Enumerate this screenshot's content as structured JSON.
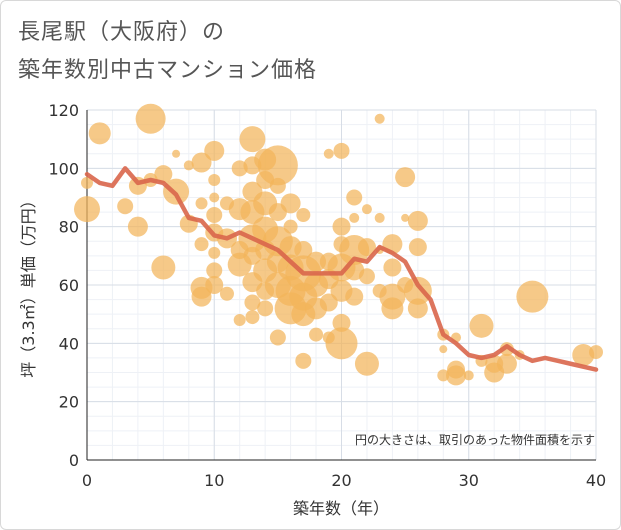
{
  "title_line1": "長尾駅（大阪府）の",
  "title_line2": "築年数別中古マンション価格",
  "chart_data": {
    "type": "scatter",
    "xlabel": "築年数（年）",
    "ylabel": "坪（3.3㎡）単価（万円）",
    "xlim": [
      0,
      40
    ],
    "ylim": [
      0,
      120
    ],
    "xticks": [
      0,
      10,
      20,
      30,
      40
    ],
    "yticks": [
      0,
      20,
      40,
      60,
      80,
      100,
      120
    ],
    "grid": true,
    "annotation": "円の大きさは、取引のあった物件面積を示す",
    "colors": {
      "bubble": "#f2b45a",
      "line": "#d9664b"
    },
    "line_series": {
      "x": [
        0,
        1,
        2,
        3,
        4,
        5,
        6,
        7,
        8,
        9,
        10,
        11,
        12,
        13,
        14,
        15,
        16,
        17,
        18,
        19,
        20,
        21,
        22,
        23,
        24,
        25,
        26,
        27,
        28,
        29,
        30,
        31,
        32,
        33,
        34,
        35,
        36,
        37,
        38,
        39,
        40
      ],
      "y": [
        98,
        95,
        94,
        100,
        95,
        96,
        95,
        91,
        83,
        82,
        77,
        76,
        78,
        76,
        74,
        72,
        68,
        64,
        64,
        64,
        64,
        69,
        68,
        73,
        71,
        68,
        60,
        55,
        43,
        40,
        36,
        35,
        36,
        39,
        36,
        34,
        35,
        34,
        33,
        32,
        31
      ]
    },
    "bubbles": [
      {
        "x": 0,
        "y": 86,
        "s": 13
      },
      {
        "x": 0,
        "y": 95,
        "s": 6
      },
      {
        "x": 1,
        "y": 112,
        "s": 11
      },
      {
        "x": 3,
        "y": 87,
        "s": 8
      },
      {
        "x": 4,
        "y": 80,
        "s": 10
      },
      {
        "x": 4,
        "y": 94,
        "s": 9
      },
      {
        "x": 5,
        "y": 117,
        "s": 15
      },
      {
        "x": 5,
        "y": 96,
        "s": 7
      },
      {
        "x": 6,
        "y": 98,
        "s": 9
      },
      {
        "x": 6,
        "y": 66,
        "s": 12
      },
      {
        "x": 7,
        "y": 92,
        "s": 13
      },
      {
        "x": 7,
        "y": 105,
        "s": 4
      },
      {
        "x": 8,
        "y": 81,
        "s": 9
      },
      {
        "x": 8,
        "y": 101,
        "s": 5
      },
      {
        "x": 9,
        "y": 102,
        "s": 10
      },
      {
        "x": 9,
        "y": 88,
        "s": 6
      },
      {
        "x": 9,
        "y": 74,
        "s": 7
      },
      {
        "x": 9,
        "y": 59,
        "s": 11
      },
      {
        "x": 9,
        "y": 56,
        "s": 10
      },
      {
        "x": 10,
        "y": 106,
        "s": 10
      },
      {
        "x": 10,
        "y": 96,
        "s": 6
      },
      {
        "x": 10,
        "y": 90,
        "s": 5
      },
      {
        "x": 10,
        "y": 84,
        "s": 8
      },
      {
        "x": 10,
        "y": 78,
        "s": 9
      },
      {
        "x": 10,
        "y": 71,
        "s": 6
      },
      {
        "x": 10,
        "y": 65,
        "s": 8
      },
      {
        "x": 10,
        "y": 60,
        "s": 9
      },
      {
        "x": 11,
        "y": 88,
        "s": 7
      },
      {
        "x": 11,
        "y": 76,
        "s": 10
      },
      {
        "x": 11,
        "y": 57,
        "s": 7
      },
      {
        "x": 12,
        "y": 100,
        "s": 8
      },
      {
        "x": 12,
        "y": 86,
        "s": 11
      },
      {
        "x": 12,
        "y": 72,
        "s": 9
      },
      {
        "x": 12,
        "y": 67,
        "s": 12
      },
      {
        "x": 12,
        "y": 48,
        "s": 6
      },
      {
        "x": 13,
        "y": 110,
        "s": 13
      },
      {
        "x": 13,
        "y": 101,
        "s": 9
      },
      {
        "x": 13,
        "y": 92,
        "s": 10
      },
      {
        "x": 13,
        "y": 85,
        "s": 12
      },
      {
        "x": 13,
        "y": 76,
        "s": 14
      },
      {
        "x": 13,
        "y": 70,
        "s": 9
      },
      {
        "x": 13,
        "y": 61,
        "s": 10
      },
      {
        "x": 13,
        "y": 54,
        "s": 8
      },
      {
        "x": 13,
        "y": 49,
        "s": 7
      },
      {
        "x": 14,
        "y": 103,
        "s": 11
      },
      {
        "x": 14,
        "y": 96,
        "s": 9
      },
      {
        "x": 14,
        "y": 88,
        "s": 12
      },
      {
        "x": 14,
        "y": 79,
        "s": 13
      },
      {
        "x": 14,
        "y": 72,
        "s": 10
      },
      {
        "x": 14,
        "y": 65,
        "s": 12
      },
      {
        "x": 14,
        "y": 58,
        "s": 9
      },
      {
        "x": 14,
        "y": 52,
        "s": 8
      },
      {
        "x": 15,
        "y": 101,
        "s": 20
      },
      {
        "x": 15,
        "y": 94,
        "s": 8
      },
      {
        "x": 15,
        "y": 85,
        "s": 9
      },
      {
        "x": 15,
        "y": 75,
        "s": 15
      },
      {
        "x": 15,
        "y": 68,
        "s": 11
      },
      {
        "x": 15,
        "y": 60,
        "s": 13
      },
      {
        "x": 15,
        "y": 42,
        "s": 8
      },
      {
        "x": 16,
        "y": 88,
        "s": 10
      },
      {
        "x": 16,
        "y": 80,
        "s": 7
      },
      {
        "x": 16,
        "y": 73,
        "s": 11
      },
      {
        "x": 16,
        "y": 66,
        "s": 13
      },
      {
        "x": 16,
        "y": 58,
        "s": 15
      },
      {
        "x": 16,
        "y": 52,
        "s": 16
      },
      {
        "x": 17,
        "y": 84,
        "s": 7
      },
      {
        "x": 17,
        "y": 72,
        "s": 9
      },
      {
        "x": 17,
        "y": 64,
        "s": 18
      },
      {
        "x": 17,
        "y": 56,
        "s": 14
      },
      {
        "x": 17,
        "y": 50,
        "s": 12
      },
      {
        "x": 17,
        "y": 34,
        "s": 8
      },
      {
        "x": 18,
        "y": 68,
        "s": 10
      },
      {
        "x": 18,
        "y": 60,
        "s": 12
      },
      {
        "x": 18,
        "y": 52,
        "s": 11
      },
      {
        "x": 18,
        "y": 43,
        "s": 7
      },
      {
        "x": 19,
        "y": 105,
        "s": 5
      },
      {
        "x": 19,
        "y": 68,
        "s": 9
      },
      {
        "x": 19,
        "y": 62,
        "s": 10
      },
      {
        "x": 19,
        "y": 54,
        "s": 9
      },
      {
        "x": 19,
        "y": 42,
        "s": 6
      },
      {
        "x": 20,
        "y": 106,
        "s": 8
      },
      {
        "x": 20,
        "y": 80,
        "s": 9
      },
      {
        "x": 20,
        "y": 74,
        "s": 8
      },
      {
        "x": 20,
        "y": 66,
        "s": 14
      },
      {
        "x": 20,
        "y": 58,
        "s": 11
      },
      {
        "x": 20,
        "y": 47,
        "s": 9
      },
      {
        "x": 20,
        "y": 40,
        "s": 16
      },
      {
        "x": 21,
        "y": 90,
        "s": 8
      },
      {
        "x": 21,
        "y": 83,
        "s": 5
      },
      {
        "x": 21,
        "y": 72,
        "s": 15
      },
      {
        "x": 21,
        "y": 65,
        "s": 10
      },
      {
        "x": 21,
        "y": 56,
        "s": 9
      },
      {
        "x": 22,
        "y": 86,
        "s": 5
      },
      {
        "x": 22,
        "y": 73,
        "s": 9
      },
      {
        "x": 22,
        "y": 63,
        "s": 8
      },
      {
        "x": 22,
        "y": 33,
        "s": 12
      },
      {
        "x": 23,
        "y": 117,
        "s": 5
      },
      {
        "x": 23,
        "y": 83,
        "s": 5
      },
      {
        "x": 23,
        "y": 58,
        "s": 7
      },
      {
        "x": 23,
        "y": 72,
        "s": 4
      },
      {
        "x": 24,
        "y": 74,
        "s": 10
      },
      {
        "x": 24,
        "y": 66,
        "s": 9
      },
      {
        "x": 24,
        "y": 56,
        "s": 13
      },
      {
        "x": 24,
        "y": 52,
        "s": 11
      },
      {
        "x": 25,
        "y": 97,
        "s": 10
      },
      {
        "x": 25,
        "y": 83,
        "s": 4
      },
      {
        "x": 25,
        "y": 60,
        "s": 8
      },
      {
        "x": 26,
        "y": 82,
        "s": 10
      },
      {
        "x": 26,
        "y": 73,
        "s": 9
      },
      {
        "x": 26,
        "y": 58,
        "s": 14
      },
      {
        "x": 26,
        "y": 52,
        "s": 10
      },
      {
        "x": 28,
        "y": 43,
        "s": 6
      },
      {
        "x": 28,
        "y": 38,
        "s": 4
      },
      {
        "x": 28,
        "y": 29,
        "s": 6
      },
      {
        "x": 29,
        "y": 42,
        "s": 5
      },
      {
        "x": 29,
        "y": 31,
        "s": 9
      },
      {
        "x": 29,
        "y": 29,
        "s": 10
      },
      {
        "x": 30,
        "y": 29,
        "s": 5
      },
      {
        "x": 31,
        "y": 46,
        "s": 12
      },
      {
        "x": 31,
        "y": 34,
        "s": 6
      },
      {
        "x": 32,
        "y": 33,
        "s": 9
      },
      {
        "x": 32,
        "y": 30,
        "s": 10
      },
      {
        "x": 33,
        "y": 38,
        "s": 7
      },
      {
        "x": 33,
        "y": 33,
        "s": 10
      },
      {
        "x": 34,
        "y": 36,
        "s": 5
      },
      {
        "x": 35,
        "y": 56,
        "s": 16
      },
      {
        "x": 39,
        "y": 36,
        "s": 11
      },
      {
        "x": 40,
        "y": 37,
        "s": 7
      }
    ]
  }
}
